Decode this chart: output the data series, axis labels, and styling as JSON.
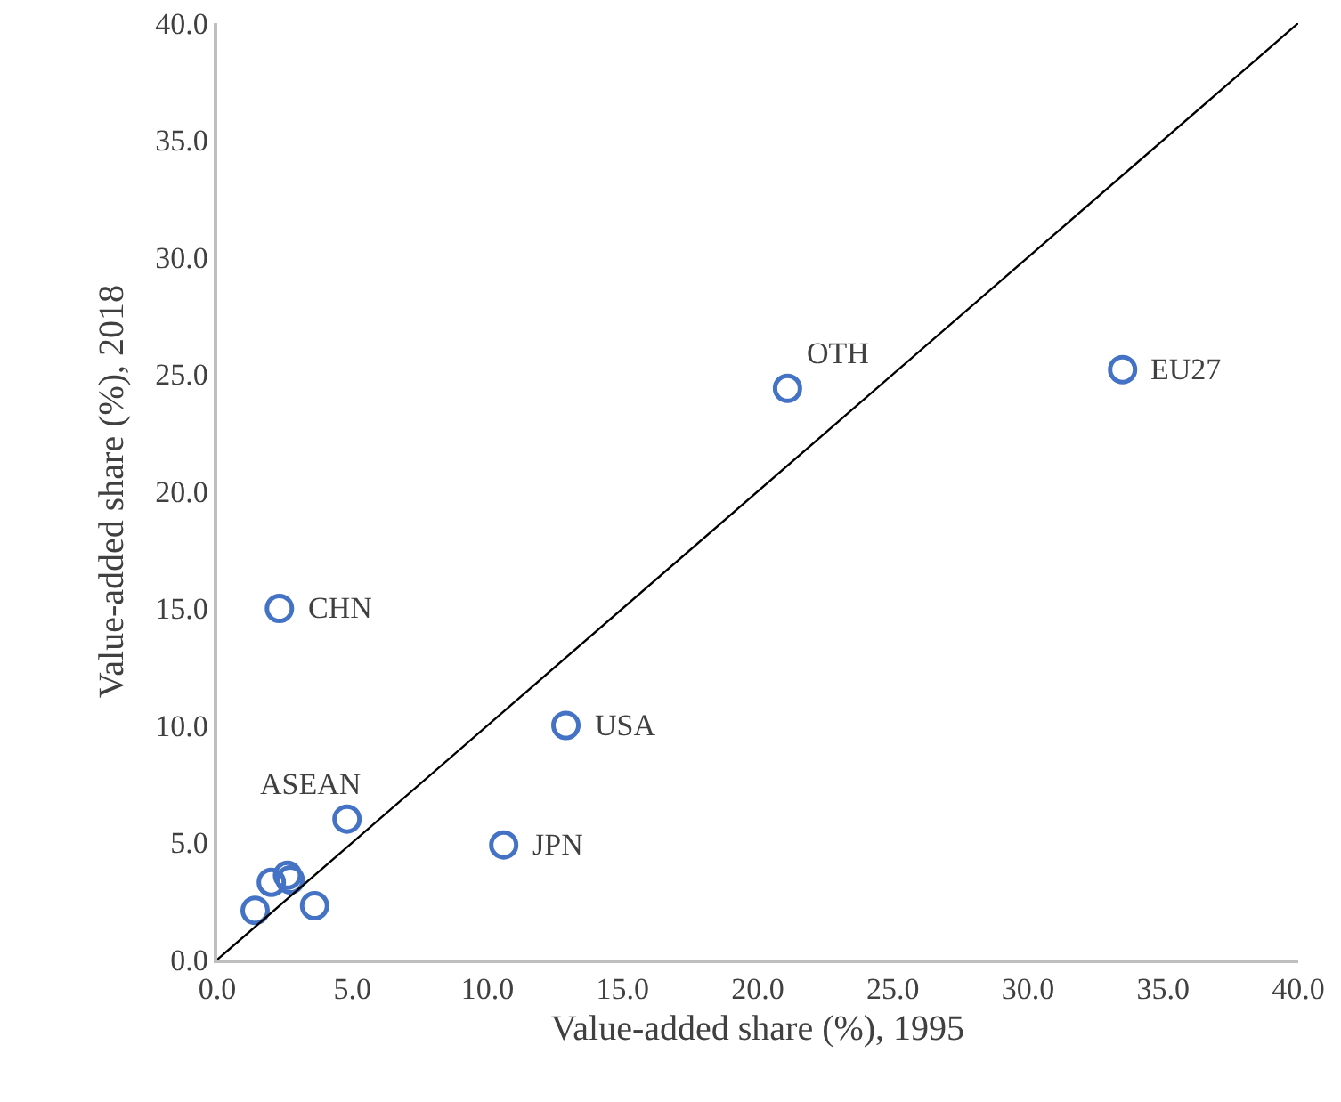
{
  "chart_data": {
    "type": "scatter",
    "xlabel": "Value-added share (%), 1995",
    "ylabel": "Value-added share (%), 2018",
    "series": [
      {
        "color": "#4472c4",
        "marker": "circle",
        "x": [
          33.5,
          21.1,
          2.3,
          12.9,
          4.8,
          10.6,
          1.4,
          2.0,
          2.6,
          2.7,
          3.6
        ],
        "values": [
          25.2,
          24.4,
          15.0,
          10.0,
          6.0,
          4.9,
          2.1,
          3.3,
          3.6,
          3.4,
          2.3
        ]
      },
      {
        "type": "line",
        "marker": "none",
        "color": "#000000",
        "x": [
          0,
          40
        ],
        "values": [
          0,
          40
        ]
      }
    ],
    "annotations": [
      {
        "text": "EU27",
        "x": 33.5,
        "y": 25.2
      },
      {
        "text": "OTH",
        "x": 21.1,
        "y": 24.4
      },
      {
        "text": "CHN",
        "x": 2.3,
        "y": 15.0
      },
      {
        "text": "USA",
        "x": 12.9,
        "y": 10.0
      },
      {
        "text": "ASEAN",
        "x": 4.8,
        "y": 6.0
      },
      {
        "text": "JPN",
        "x": 10.6,
        "y": 4.9
      }
    ],
    "grid": false,
    "xlim": [
      0,
      40
    ],
    "ylim": [
      0,
      40
    ],
    "xticks": [
      {
        "value": 0,
        "label": "0.0"
      },
      {
        "value": 5,
        "label": "5.0"
      },
      {
        "value": 10,
        "label": "10.0"
      },
      {
        "value": 15,
        "label": "15.0"
      },
      {
        "value": 20,
        "label": "20.0"
      },
      {
        "value": 25,
        "label": "25.0"
      },
      {
        "value": 30,
        "label": "30.0"
      },
      {
        "value": 35,
        "label": "35.0"
      },
      {
        "value": 40,
        "label": "40.0"
      }
    ],
    "yticks": [
      {
        "value": 0,
        "label": "0.0"
      },
      {
        "value": 5,
        "label": "5.0"
      },
      {
        "value": 10,
        "label": "10.0"
      },
      {
        "value": 15,
        "label": "15.0"
      },
      {
        "value": 20,
        "label": "20.0"
      },
      {
        "value": 25,
        "label": "25.0"
      },
      {
        "value": 30,
        "label": "30.0"
      },
      {
        "value": 35,
        "label": "35.0"
      },
      {
        "value": 40,
        "label": "40.0"
      }
    ]
  }
}
